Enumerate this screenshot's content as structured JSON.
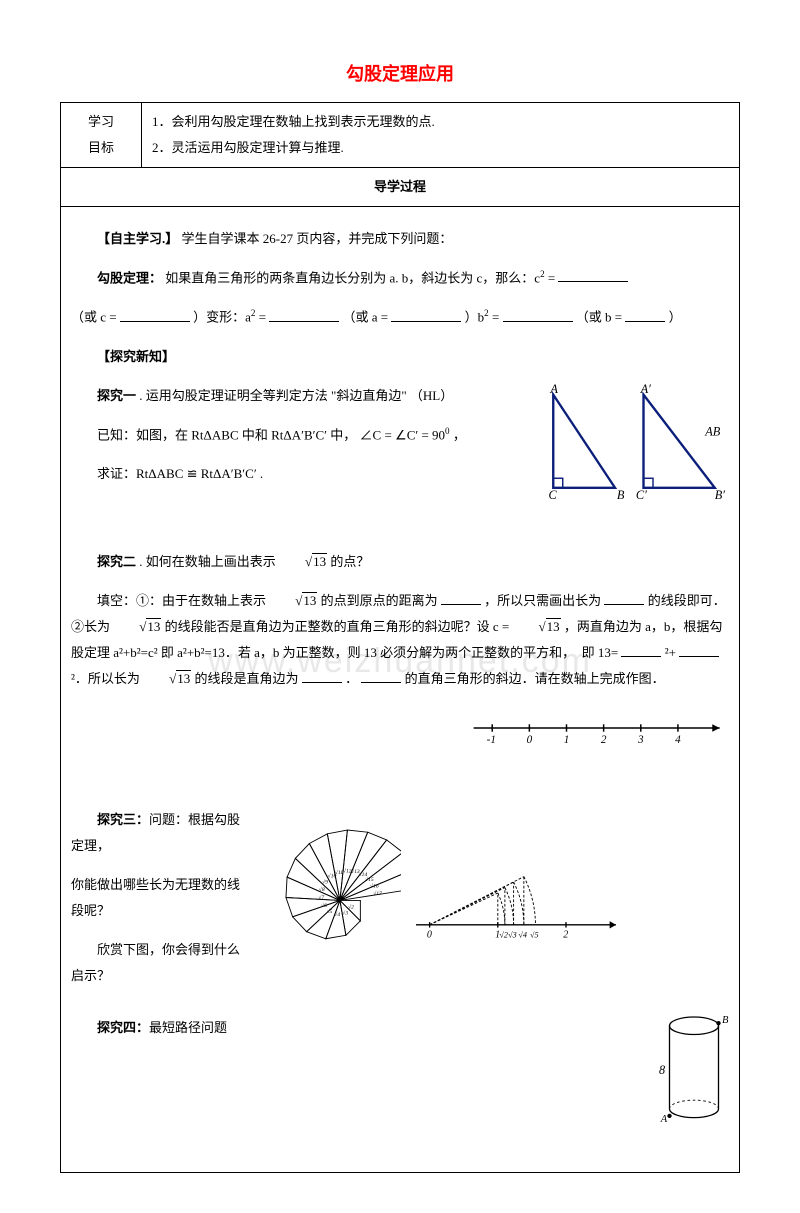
{
  "title": "勾股定理应用",
  "objectives": {
    "label": "学习\n目标",
    "items": [
      "1．会利用勾股定理在数轴上找到表示无理数的点.",
      "2．灵活运用勾股定理计算与推理."
    ]
  },
  "process_header": "导学过程",
  "selfstudy": {
    "heading": "【自主学习.】",
    "intro": "学生自学课本 26-27 页内容，并完成下列问题：",
    "theorem_label": "勾股定理：",
    "theorem_text_1": "如果直角三角形的两条直角边长分别为 a. b，斜边长为 c，那么：c",
    "theorem_text_2": "（或  c =",
    "theorem_text_3": "）变形：a",
    "theorem_text_4": "（或  a =",
    "theorem_text_5": "）b",
    "theorem_text_6": "（或 b =",
    "theorem_text_7": "）"
  },
  "explore": {
    "heading": "【探究新知】",
    "e1_title": "探究一",
    "e1_text": ". 运用勾股定理证明全等判定方法 \"斜边直角边\" （HL）",
    "e1_given_pre": "已知：如图，在 RtΔABC 中和 RtΔA′B′C′ 中，",
    "e1_angle": "∠C = ∠C′ = 90",
    "e1_given_post": "，",
    "e1_side": "AB",
    "e1_prove": "求证：RtΔABC ≌ RtΔA′B′C′ .",
    "tri_labels": {
      "A": "A",
      "B": "B",
      "C": "C",
      "Ap": "A′",
      "Bp": "B′",
      "Cp": "C′"
    },
    "e2_title": "探究二",
    "e2_q": ". 如何在数轴上画出表示 ",
    "e2_sqrt": "13",
    "e2_q2": " 的点？",
    "e2_fill_1": "填空：①：由于在数轴上表示 ",
    "e2_fill_2": " 的点到原点的距离为",
    "e2_fill_3": "，所以只需画出长为",
    "e2_fill_4": "的线段即可．②长为 ",
    "e2_fill_5": " 的线段能否是直角边为正整数的直角三角形的斜边呢？设 c = ",
    "e2_fill_6": "，两直角边为 a，b，根据勾股定理 a²+b²=c² 即 a²+b²=13．若 a，b 为正整数，则 13 必须分解为两个正整数的平方和，　即 13=",
    "e2_fill_7": "²+",
    "e2_fill_8": "²．所以长为 ",
    "e2_fill_9": " 的线段是直角边为",
    "e2_fill_10": "．",
    "e2_fill_11": "的直角三角形的斜边．请在数轴上完成作图．",
    "numberline_ticks": [
      "-1",
      "0",
      "1",
      "2",
      "3",
      "4"
    ],
    "e3_title": "探究三：",
    "e3_q1": "问题：根据勾股定理，",
    "e3_q2": "你能做出哪些长为无理数的线段呢？",
    "e3_q3": "欣赏下图，你会得到什么启示？",
    "spiral_labels": [
      "√2",
      "√3",
      "√4",
      "√5",
      "√6",
      "√7",
      "√8",
      "√9",
      "√10",
      "√11",
      "√12",
      "√13",
      "√14",
      "√15",
      "√16",
      "√17"
    ],
    "arc_ticks": [
      "0",
      "1",
      "2"
    ],
    "arc_labels": [
      "√2",
      "√3",
      "√4",
      "√5"
    ],
    "e4_title": "探究四：",
    "e4_text": "最短路径问题",
    "cyl": {
      "A": "A",
      "B": "B",
      "h": "8"
    }
  },
  "watermark": "www.weizhuannet.com",
  "colors": {
    "title": "#ff0000",
    "border": "#000000",
    "triangle_stroke": "#0b1f7a",
    "text": "#000000"
  }
}
